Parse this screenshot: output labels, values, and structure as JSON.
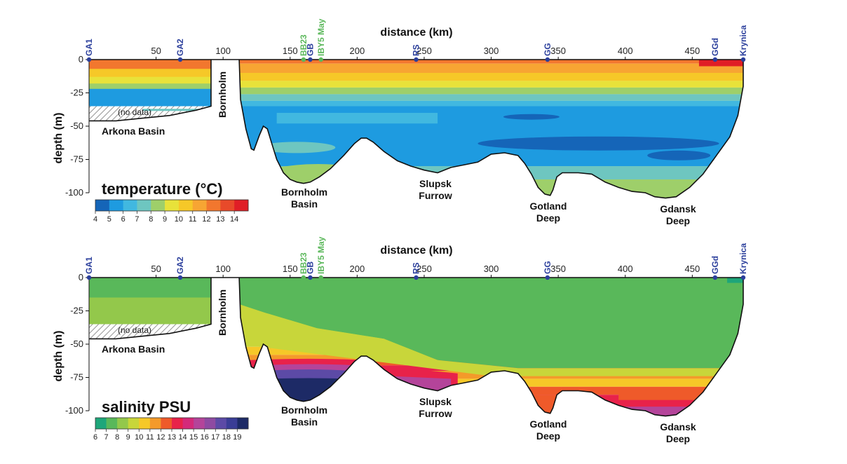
{
  "chart_data": [
    {
      "type": "section",
      "variable": "temperature",
      "colorbar_title": "temperature (°C)",
      "colorbar_ticks": [
        "4",
        "5",
        "6",
        "7",
        "8",
        "9",
        "10",
        "11",
        "12",
        "13",
        "14"
      ],
      "colorbar_colors": [
        "#1565b8",
        "#1e9be0",
        "#41b8e0",
        "#6ec6c0",
        "#9ecf6a",
        "#e8e23a",
        "#f6c828",
        "#f7a533",
        "#f2772e",
        "#e84a2a",
        "#e01e26"
      ],
      "xlabel": "distance (km)",
      "ylabel": "depth (m)",
      "x_ticks": [
        "50",
        "100",
        "150",
        "200",
        "250",
        "300",
        "350",
        "400",
        "450"
      ],
      "x_tick_values": [
        50,
        100,
        150,
        200,
        250,
        300,
        350,
        400,
        450
      ],
      "y_ticks": [
        "0",
        "-25",
        "-50",
        "-75",
        "-100"
      ],
      "y_tick_values": [
        0,
        -25,
        -50,
        -75,
        -100
      ],
      "xlim": [
        0,
        488
      ],
      "ylim": [
        -110,
        0
      ],
      "stations": [
        {
          "name": "GA1",
          "km": 0,
          "color": "blue"
        },
        {
          "name": "GA2",
          "km": 68,
          "color": "blue"
        },
        {
          "name": "BB23",
          "km": 160,
          "color": "green"
        },
        {
          "name": "GB",
          "km": 165,
          "color": "blue"
        },
        {
          "name": "IBY5 May",
          "km": 173,
          "color": "green"
        },
        {
          "name": "RS",
          "km": 244,
          "color": "blue"
        },
        {
          "name": "GG",
          "km": 342,
          "color": "blue"
        },
        {
          "name": "GGd",
          "km": 467,
          "color": "blue"
        },
        {
          "name": "Krynica",
          "km": 488,
          "color": "blue"
        }
      ],
      "bottom_profile": [
        [
          0,
          -46
        ],
        [
          20,
          -46
        ],
        [
          40,
          -44
        ],
        [
          60,
          -42
        ],
        [
          80,
          -38
        ],
        [
          91,
          -35
        ],
        [
          91,
          0
        ],
        [
          112,
          0
        ],
        [
          113,
          -30
        ],
        [
          117,
          -52
        ],
        [
          121,
          -67
        ],
        [
          123,
          -68
        ],
        [
          127,
          -57
        ],
        [
          130,
          -50
        ],
        [
          133,
          -52
        ],
        [
          136,
          -62
        ],
        [
          140,
          -75
        ],
        [
          145,
          -85
        ],
        [
          150,
          -90
        ],
        [
          155,
          -92
        ],
        [
          160,
          -93
        ],
        [
          165,
          -92
        ],
        [
          172,
          -88
        ],
        [
          180,
          -82
        ],
        [
          190,
          -72
        ],
        [
          198,
          -63
        ],
        [
          203,
          -59
        ],
        [
          207,
          -59
        ],
        [
          212,
          -62
        ],
        [
          220,
          -69
        ],
        [
          230,
          -76
        ],
        [
          240,
          -80
        ],
        [
          250,
          -83
        ],
        [
          260,
          -85
        ],
        [
          270,
          -81
        ],
        [
          280,
          -79
        ],
        [
          290,
          -77
        ],
        [
          300,
          -71
        ],
        [
          310,
          -70
        ],
        [
          320,
          -72
        ],
        [
          325,
          -78
        ],
        [
          330,
          -86
        ],
        [
          335,
          -96
        ],
        [
          340,
          -101
        ],
        [
          344,
          -102
        ],
        [
          346,
          -98
        ],
        [
          349,
          -88
        ],
        [
          353,
          -85
        ],
        [
          365,
          -85
        ],
        [
          375,
          -86
        ],
        [
          385,
          -92
        ],
        [
          395,
          -96
        ],
        [
          405,
          -99
        ],
        [
          415,
          -100
        ],
        [
          422,
          -103
        ],
        [
          430,
          -104
        ],
        [
          438,
          -103
        ],
        [
          448,
          -96
        ],
        [
          458,
          -86
        ],
        [
          468,
          -72
        ],
        [
          478,
          -58
        ],
        [
          484,
          -42
        ],
        [
          488,
          -20
        ],
        [
          488,
          0
        ]
      ],
      "features": [
        {
          "name": "Bornholm",
          "rotated": true
        },
        {
          "name": "Arkona Basin"
        },
        {
          "name": "Bornholm Basin"
        },
        {
          "name": "Slupsk Furrow"
        },
        {
          "name": "Gotland Deep"
        },
        {
          "name": "Gdansk Deep"
        }
      ],
      "annotations": [
        "(no data)"
      ]
    },
    {
      "type": "section",
      "variable": "salinity",
      "colorbar_title": "salinity PSU",
      "colorbar_ticks": [
        "6",
        "7",
        "8",
        "9",
        "10",
        "11",
        "12",
        "13",
        "14",
        "15",
        "16",
        "17",
        "18",
        "19"
      ],
      "colorbar_colors": [
        "#1ea67a",
        "#59b85a",
        "#93c84b",
        "#c8d63a",
        "#f6c828",
        "#f49a2a",
        "#ef5a2a",
        "#e8224a",
        "#d42a7a",
        "#b4449a",
        "#8e4aa2",
        "#5c4aa6",
        "#3a3d96",
        "#1d2a66"
      ],
      "xlabel": "distance (km)",
      "ylabel": "depth (m)",
      "x_ticks": [
        "50",
        "100",
        "150",
        "200",
        "250",
        "300",
        "350",
        "400",
        "450"
      ],
      "x_tick_values": [
        50,
        100,
        150,
        200,
        250,
        300,
        350,
        400,
        450
      ],
      "y_ticks": [
        "0",
        "-25",
        "-50",
        "-75",
        "-100"
      ],
      "y_tick_values": [
        0,
        -25,
        -50,
        -75,
        -100
      ],
      "xlim": [
        0,
        488
      ],
      "ylim": [
        -110,
        0
      ],
      "stations": [
        {
          "name": "GA1",
          "km": 0,
          "color": "blue"
        },
        {
          "name": "GA2",
          "km": 68,
          "color": "blue"
        },
        {
          "name": "BB23",
          "km": 160,
          "color": "green"
        },
        {
          "name": "GB",
          "km": 165,
          "color": "blue"
        },
        {
          "name": "IBY5 May",
          "km": 173,
          "color": "green"
        },
        {
          "name": "RS",
          "km": 244,
          "color": "blue"
        },
        {
          "name": "GG",
          "km": 342,
          "color": "blue"
        },
        {
          "name": "GGd",
          "km": 467,
          "color": "blue"
        },
        {
          "name": "Krynica",
          "km": 488,
          "color": "blue"
        }
      ],
      "features": [
        {
          "name": "Bornholm",
          "rotated": true
        },
        {
          "name": "Arkona Basin"
        },
        {
          "name": "Bornholm Basin"
        },
        {
          "name": "Slupsk Furrow"
        },
        {
          "name": "Gotland Deep"
        },
        {
          "name": "Gdansk Deep"
        }
      ],
      "annotations": [
        "(no data)"
      ]
    }
  ]
}
